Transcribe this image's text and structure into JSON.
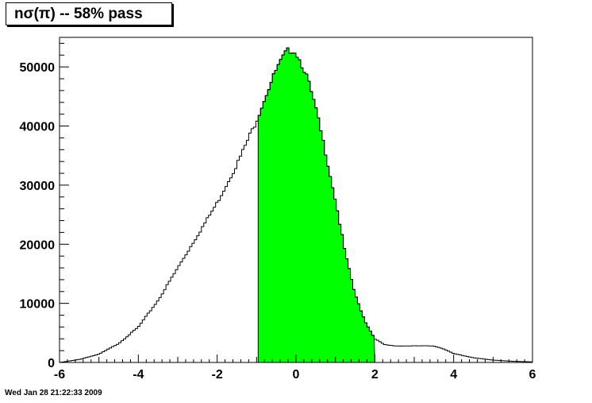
{
  "title": "nσ(π) -- 58% pass",
  "timestamp": "Wed Jan 28 21:22:33 2009",
  "chart_data": {
    "type": "histogram",
    "title": "nσ(π) -- 58% pass",
    "xlabel": "",
    "ylabel": "",
    "xlim": [
      -6,
      6
    ],
    "ylim": [
      0,
      55000
    ],
    "x_ticks": [
      -6,
      -4,
      -2,
      0,
      2,
      4,
      6
    ],
    "y_ticks": [
      0,
      10000,
      20000,
      30000,
      40000,
      50000
    ],
    "grid": false,
    "selected_range": [
      -1,
      2
    ],
    "fill_color": "#00ff00",
    "line_color": "#000000",
    "profile": [
      [
        -6.0,
        0
      ],
      [
        -5.5,
        500
      ],
      [
        -5.0,
        1400
      ],
      [
        -4.5,
        3200
      ],
      [
        -4.0,
        6000
      ],
      [
        -3.5,
        10500
      ],
      [
        -3.0,
        16000
      ],
      [
        -2.5,
        21500
      ],
      [
        -2.0,
        27000
      ],
      [
        -1.5,
        33500
      ],
      [
        -1.0,
        41000
      ],
      [
        -0.75,
        45500
      ],
      [
        -0.5,
        49500
      ],
      [
        -0.25,
        52500
      ],
      [
        -0.1,
        53000
      ],
      [
        0.0,
        52500
      ],
      [
        0.25,
        49000
      ],
      [
        0.5,
        43000
      ],
      [
        0.75,
        35500
      ],
      [
        1.0,
        27500
      ],
      [
        1.25,
        18500
      ],
      [
        1.5,
        11500
      ],
      [
        1.75,
        7000
      ],
      [
        2.0,
        4000
      ],
      [
        2.25,
        3000
      ],
      [
        2.5,
        2800
      ],
      [
        3.0,
        2800
      ],
      [
        3.5,
        2800
      ],
      [
        3.75,
        2300
      ],
      [
        4.0,
        1500
      ],
      [
        4.5,
        800
      ],
      [
        5.0,
        400
      ],
      [
        5.5,
        200
      ],
      [
        6.0,
        100
      ]
    ]
  }
}
